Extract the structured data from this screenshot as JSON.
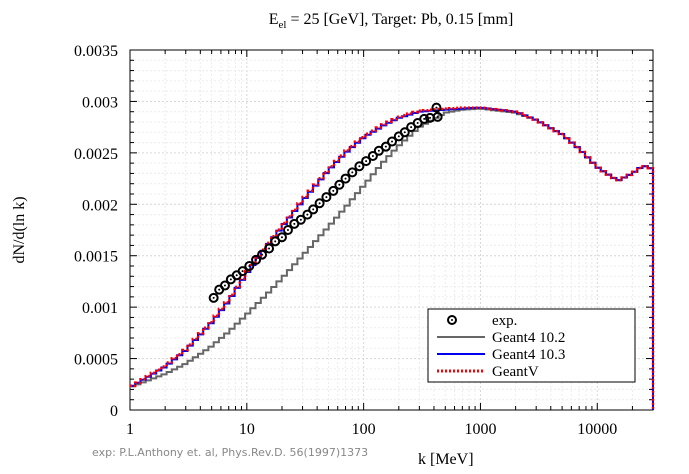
{
  "chart_data": {
    "type": "line",
    "title_prefix": "E",
    "title_sub": "el",
    "title_rest": " = 25 [GeV], Target: Pb, 0.15 [mm]",
    "xlabel": "k [MeV]",
    "ylabel": "dN/d(ln k)",
    "x_scale": "log",
    "xlim": [
      1,
      30000
    ],
    "ylim": [
      0,
      0.0035
    ],
    "grid": true,
    "legend_position": "bottom-right",
    "x_ticks": [
      {
        "value": 1,
        "label": "1"
      },
      {
        "value": 10,
        "label": "10"
      },
      {
        "value": 100,
        "label": "100"
      },
      {
        "value": 1000,
        "label": "1000"
      },
      {
        "value": 10000,
        "label": "10000"
      }
    ],
    "y_ticks": [
      {
        "value": 0,
        "label": "0"
      },
      {
        "value": 0.0005,
        "label": "0.0005"
      },
      {
        "value": 0.001,
        "label": "0.001"
      },
      {
        "value": 0.0015,
        "label": "0.0015"
      },
      {
        "value": 0.002,
        "label": "0.002"
      },
      {
        "value": 0.0025,
        "label": "0.0025"
      },
      {
        "value": 0.003,
        "label": "0.003"
      },
      {
        "value": 0.0035,
        "label": "0.0035"
      }
    ],
    "series": [
      {
        "name": "Geant4 10.2",
        "style": "step",
        "color": "#666666",
        "x": [
          1,
          2,
          3,
          5,
          7,
          10,
          15,
          20,
          30,
          50,
          70,
          100,
          150,
          200,
          300,
          500,
          700,
          1000,
          2000,
          3000,
          5000,
          7000,
          10000,
          15000,
          20000,
          25000,
          27000,
          28000
        ],
        "y": [
          0.00022,
          0.00035,
          0.00045,
          0.00062,
          0.00076,
          0.00093,
          0.00113,
          0.00128,
          0.0015,
          0.00178,
          0.00197,
          0.00218,
          0.00242,
          0.00257,
          0.00275,
          0.00289,
          0.00292,
          0.00293,
          0.00289,
          0.00282,
          0.00268,
          0.00254,
          0.00236,
          0.00223,
          0.0023,
          0.00238,
          0.00235,
          0
        ]
      },
      {
        "name": "Geant4 10.3",
        "style": "step",
        "color": "#0000ee",
        "x": [
          1,
          2,
          3,
          5,
          7,
          10,
          15,
          20,
          30,
          50,
          70,
          100,
          150,
          200,
          300,
          500,
          700,
          1000,
          2000,
          3000,
          5000,
          7000,
          10000,
          15000,
          20000,
          25000,
          27000,
          28000
        ],
        "y": [
          0.00022,
          0.00042,
          0.00058,
          0.00085,
          0.00106,
          0.00133,
          0.0016,
          0.00178,
          0.00203,
          0.00233,
          0.0025,
          0.00265,
          0.00277,
          0.00284,
          0.0029,
          0.00292,
          0.00293,
          0.00294,
          0.0029,
          0.00282,
          0.00268,
          0.00254,
          0.00236,
          0.00223,
          0.0023,
          0.00238,
          0.00235,
          0
        ]
      },
      {
        "name": "GeantV",
        "style": "dotted-step",
        "color": "#ff0000",
        "x": [
          1,
          2,
          3,
          5,
          7,
          10,
          15,
          20,
          30,
          50,
          70,
          100,
          150,
          200,
          300,
          500,
          700,
          1000,
          2000,
          3000,
          5000,
          7000,
          10000,
          15000,
          20000,
          25000,
          27000,
          28000
        ],
        "y": [
          0.00022,
          0.00043,
          0.00059,
          0.00086,
          0.00107,
          0.00134,
          0.00161,
          0.00179,
          0.00204,
          0.00234,
          0.00251,
          0.00266,
          0.00278,
          0.00285,
          0.00291,
          0.00293,
          0.00294,
          0.00294,
          0.0029,
          0.00282,
          0.00268,
          0.00254,
          0.00236,
          0.00223,
          0.0023,
          0.00238,
          0.00235,
          0
        ]
      },
      {
        "name": "exp.",
        "style": "markers",
        "color": "#000000",
        "x": [
          5.2,
          5.8,
          6.5,
          7.3,
          8.2,
          9.2,
          10.5,
          12,
          13.5,
          15.5,
          17.5,
          20,
          22.5,
          25.5,
          29,
          33,
          37,
          42,
          48,
          55,
          62,
          70,
          80,
          92,
          105,
          120,
          135,
          155,
          175,
          200,
          225,
          255,
          290,
          330,
          370,
          420,
          430
        ],
        "y": [
          0.00109,
          0.00117,
          0.00121,
          0.00127,
          0.00131,
          0.00135,
          0.0014,
          0.00146,
          0.00151,
          0.00157,
          0.00164,
          0.00168,
          0.00175,
          0.00181,
          0.00185,
          0.0019,
          0.00195,
          0.00201,
          0.00207,
          0.00213,
          0.00219,
          0.00225,
          0.00231,
          0.00237,
          0.00242,
          0.00247,
          0.00252,
          0.00256,
          0.00261,
          0.00266,
          0.0027,
          0.00275,
          0.00279,
          0.00283,
          0.00284,
          0.00294,
          0.00285
        ]
      }
    ],
    "legend_items": [
      "exp.",
      "Geant4 10.2",
      "Geant4 10.3",
      "GeantV"
    ]
  },
  "credit": "exp: P.L.Anthony et. al, Phys.Rev.D. 56(1997)1373"
}
